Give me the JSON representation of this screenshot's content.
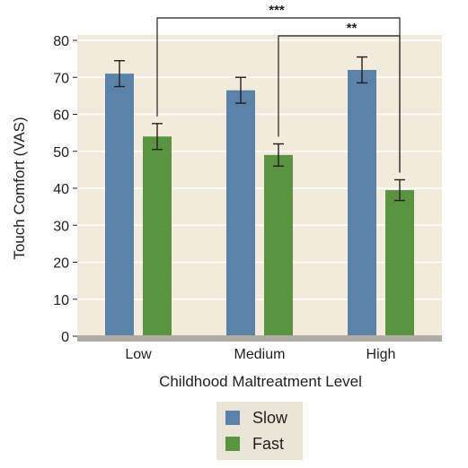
{
  "chart_data": {
    "type": "bar",
    "xlabel": "Childhood Maltreatment Level",
    "ylabel": "Touch Comfort (VAS)",
    "categories": [
      "Low",
      "Medium",
      "High"
    ],
    "ylim": [
      0,
      80
    ],
    "yticks": [
      0,
      10,
      20,
      30,
      40,
      50,
      60,
      70,
      80
    ],
    "grid": true,
    "legend_position": "bottom",
    "series": [
      {
        "name": "Slow",
        "values": [
          71,
          66.5,
          72
        ],
        "errors": [
          3.5,
          3.5,
          3.5
        ],
        "color": "#5b83aa"
      },
      {
        "name": "Fast",
        "values": [
          54,
          49,
          39.5
        ],
        "errors": [
          3.5,
          3,
          2.8
        ],
        "color": "#5a9440"
      }
    ],
    "annotations": [
      {
        "label": "***",
        "from": "Low Fast",
        "to": "High Fast"
      },
      {
        "label": "**",
        "from": "Medium Fast",
        "to": "High Fast"
      }
    ]
  },
  "colors": {
    "plot_background": "#f2eadb",
    "gridline": "#ffffff",
    "baseline": "#b0aca6",
    "legend_background": "#eae5d6"
  }
}
